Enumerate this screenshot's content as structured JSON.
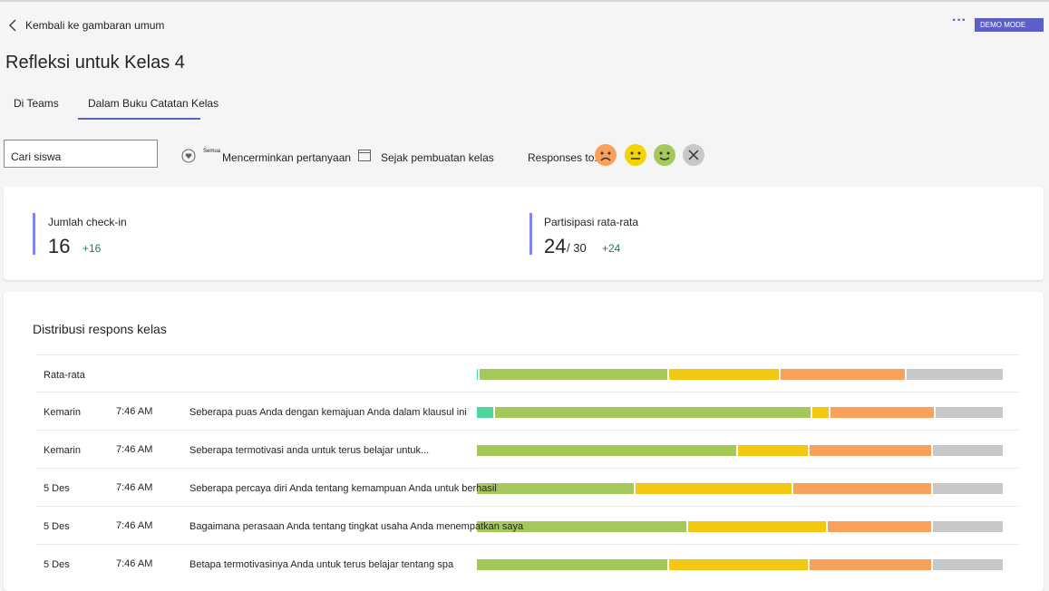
{
  "header": {
    "back": "Kembali ke gambaran umum",
    "more": "···",
    "badge": "DEMO MODE",
    "title": "Refleksi untuk Kelas 4"
  },
  "tabs": [
    "Di Teams",
    "Dalam Buku Catatan Kelas"
  ],
  "filters": {
    "search": "Cari siswa",
    "all": "Semua",
    "reflect": "Mencerminkan pertanyaan",
    "since": "Sejak pembuatan kelas",
    "responses": "Responses to:"
  },
  "stats": {
    "checkins": {
      "label": "Jumlah check-in",
      "value": 16,
      "delta": "+16"
    },
    "participation": {
      "label": "Partisipasi rata-rata",
      "value": 24,
      "total": "/ 30",
      "delta": "+24"
    }
  },
  "distribution": {
    "title": "Distribusi respons kelas",
    "colors": [
      "#4fd49a",
      "#a5c85a",
      "#f2c811",
      "#f9a05b",
      "#c8c8c8"
    ],
    "average": {
      "label": "Rata-rata",
      "values": [
        0.5,
        36,
        21,
        24,
        18.5
      ]
    },
    "rows": [
      {
        "date": "Kemarin",
        "time": "7:46 AM",
        "question": "Seberapa puas Anda dengan kemajuan Anda dalam klausul ini",
        "values": [
          3.5,
          60,
          3.5,
          20,
          13
        ]
      },
      {
        "date": "Kemarin",
        "time": "7:46 AM",
        "question": "Seberapa termotivasi anda untuk terus belajar untuk...",
        "values": [
          0,
          49.5,
          13.5,
          23.5,
          13.5
        ]
      },
      {
        "date": "5 Des",
        "time": "7:46 AM",
        "question": "Seberapa percaya diri Anda tentang kemampuan Anda untuk berhasil",
        "values": [
          0,
          30,
          30,
          26.5,
          13.5
        ]
      },
      {
        "date": "5 Des",
        "time": "7:46 AM",
        "question": "Bagaimana perasaan Anda tentang tingkat usaha Anda menempatkan saya",
        "values": [
          0,
          40,
          26.5,
          20,
          13.5
        ]
      },
      {
        "date": "5 Des",
        "time": "7:46 AM",
        "question": "Betapa termotivasinya Anda untuk terus belajar tentang spa",
        "values": [
          0,
          36.5,
          26.5,
          23.5,
          13.5
        ]
      }
    ]
  }
}
